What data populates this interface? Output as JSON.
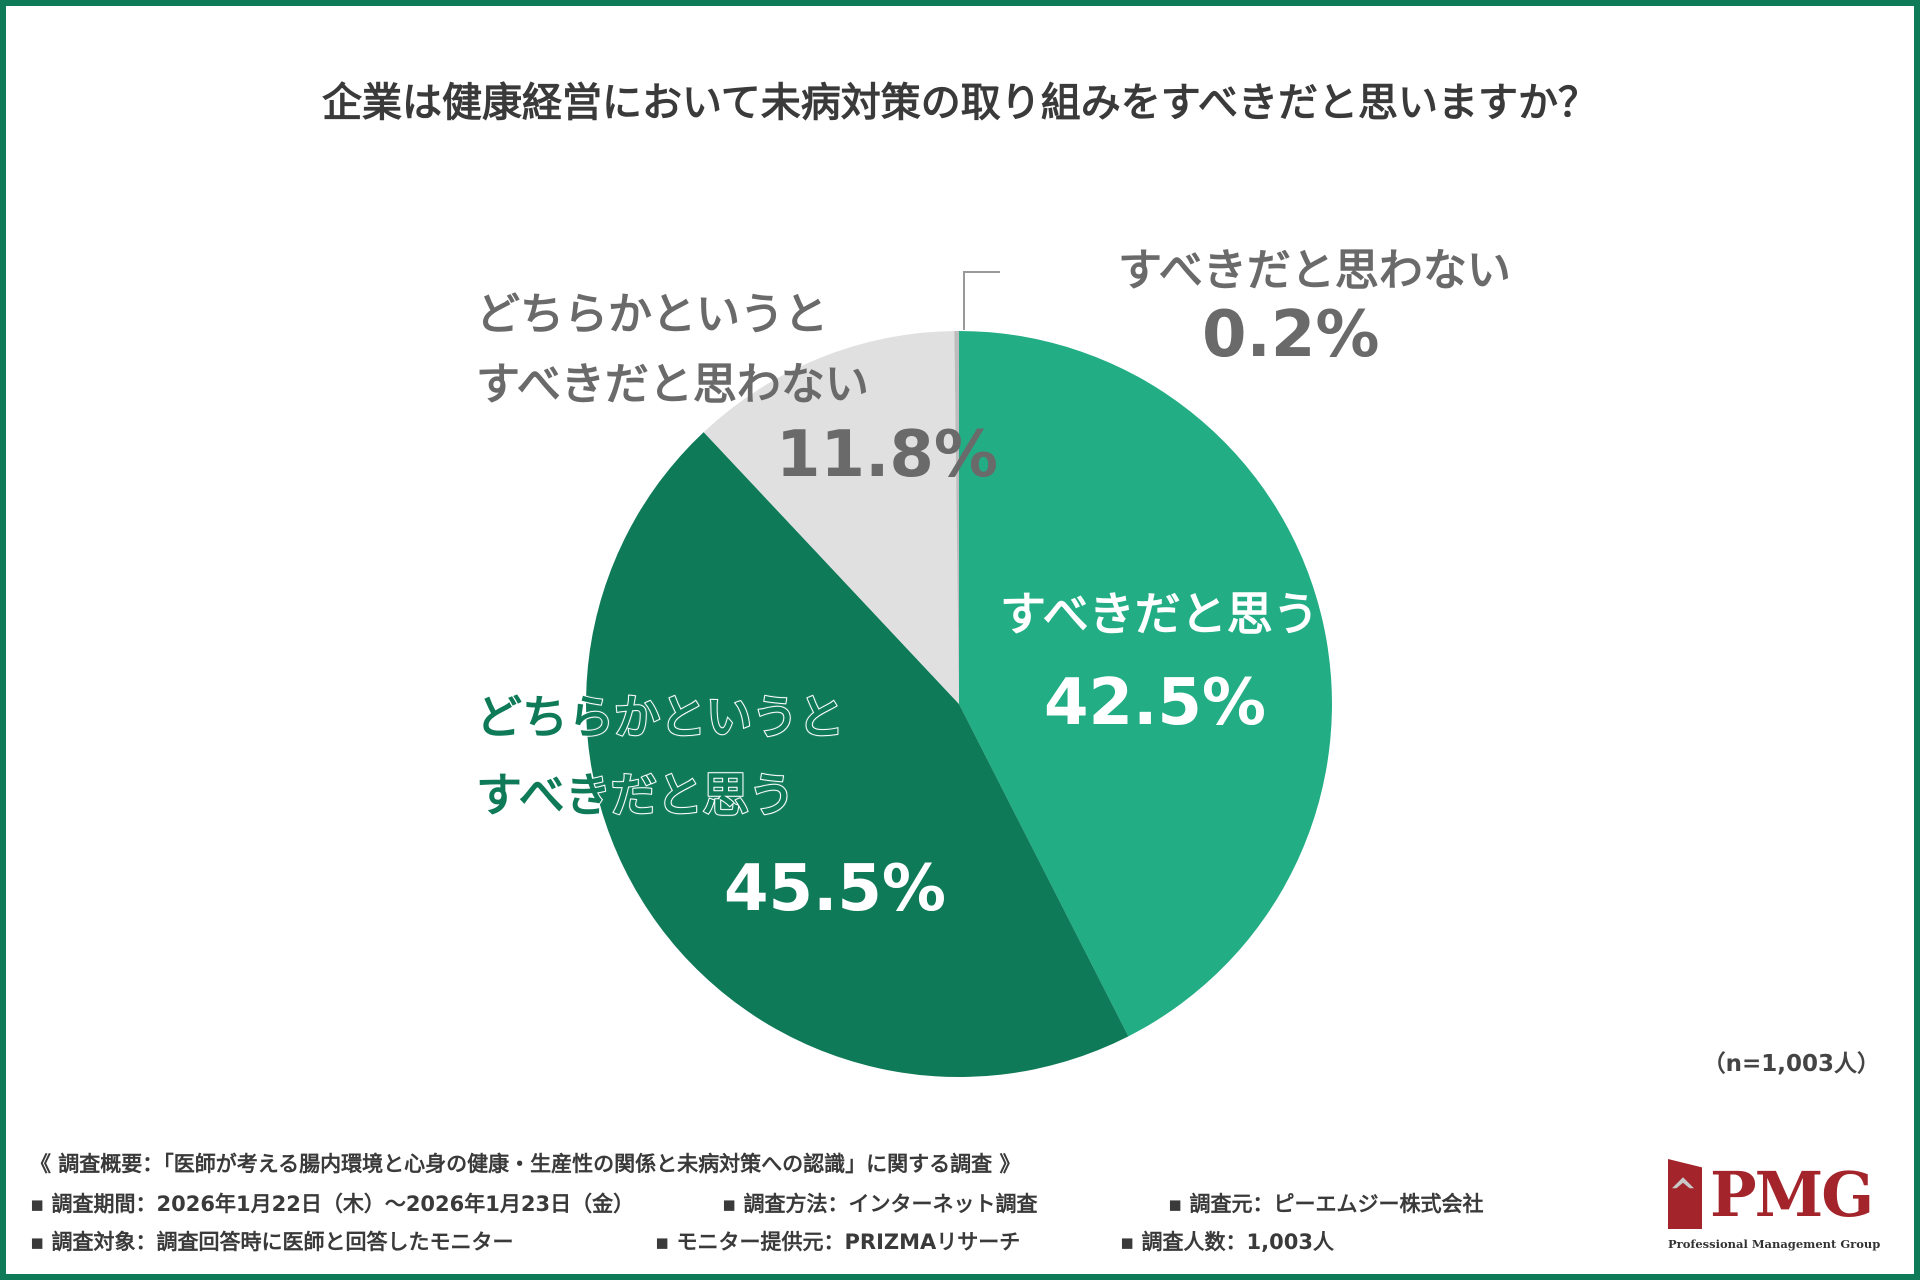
{
  "colors": {
    "accent_light": "#22ad85",
    "accent_dark": "#0e7a57",
    "gray": "#e0e0e0",
    "frame": "#0e7a57",
    "logo": "#a3242a"
  },
  "chart_data": {
    "type": "pie",
    "title": "企業は健康経営において未病対策の取り組みをすべきだと思いますか？",
    "start": "12 o'clock, clockwise",
    "slices": [
      {
        "label": "すべきだと思う",
        "value": 42.5,
        "value_label": "42.5%",
        "color": "#22ad85"
      },
      {
        "label": "どちらかというと すべきだと思う",
        "label_lines": [
          "どちらかというと",
          "すべきだと思う"
        ],
        "value": 45.5,
        "value_label": "45.5%",
        "color": "#0e7a57"
      },
      {
        "label": "どちらかというと すべきだと思わない",
        "label_lines": [
          "どちらかというと",
          "すべきだと思わない"
        ],
        "value": 11.8,
        "value_label": "11.8%",
        "color": "#e0e0e0"
      },
      {
        "label": "すべきだと思わない",
        "value": 0.2,
        "value_label": "0.2%",
        "color": "#bdbdbd"
      }
    ],
    "sample_note": "（n=1,003人）"
  },
  "footer": {
    "overview": "《 調査概要：「医師が考える腸内環境と心身の健康・生産性の関係と未病対策への認識」に関する調査 》",
    "row1": [
      "▪ 調査期間：2026年1月22日（木）～2026年1月23日（金）",
      "▪ 調査方法：インターネット調査",
      "▪ 調査元：ピーエムジー株式会社"
    ],
    "row2": [
      "▪ 調査対象：調査回答時に医師と回答したモニター",
      "▪ モニター提供元：PRIZMAリサーチ",
      "▪ 調査人数：1,003人"
    ]
  },
  "logo": {
    "word": "PMG",
    "sub": "Professional Management Group"
  }
}
